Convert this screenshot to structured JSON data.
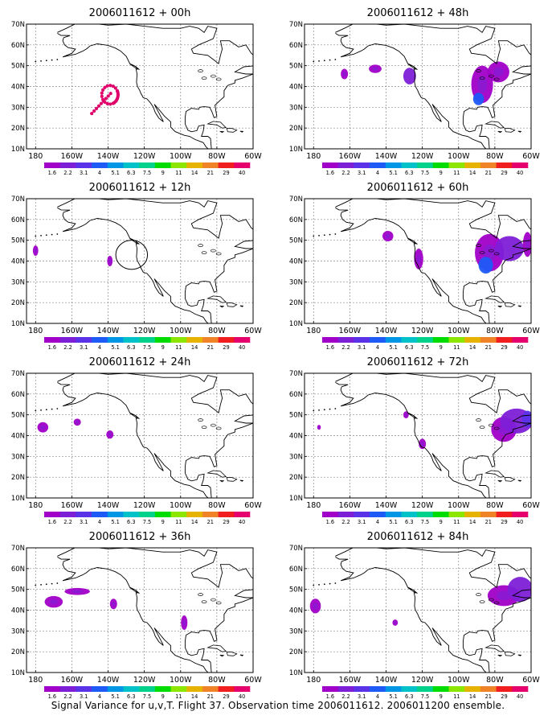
{
  "figure": {
    "caption": "Signal Variance for u,v,T. Flight 37. Observation time 2006011612. 2006011200 ensemble."
  },
  "axes": {
    "y_ticks": [
      "70N",
      "60N",
      "50N",
      "40N",
      "30N",
      "20N",
      "10N"
    ],
    "x_ticks": [
      "180",
      "160W",
      "140W",
      "120W",
      "100W",
      "80W",
      "60W"
    ],
    "lat_range": [
      10,
      70
    ],
    "lon_range": [
      -185,
      -60
    ]
  },
  "colorbar": {
    "labels": [
      "1.6",
      "2.2",
      "3.1",
      "4",
      "5.1",
      "6.3",
      "7.5",
      "9",
      "11",
      "14",
      "21",
      "29",
      "40"
    ],
    "colors": [
      "#a000c8",
      "#7d1fd6",
      "#5a32e8",
      "#1e5af5",
      "#0096e6",
      "#00c2c8",
      "#00d28c",
      "#00dc00",
      "#8ce600",
      "#e6b400",
      "#f08228",
      "#f01e1e",
      "#e6006e"
    ]
  },
  "panels": [
    {
      "title": "2006011612 + 00h",
      "blobs": [],
      "track": true
    },
    {
      "title": "2006011612 + 48h",
      "blobs": [
        {
          "lon": -163,
          "lat": 46,
          "rx": 2,
          "ry": 2.5,
          "c": 0
        },
        {
          "lon": -146,
          "lat": 48.5,
          "rx": 3.5,
          "ry": 2,
          "c": 0
        },
        {
          "lon": -127,
          "lat": 45,
          "rx": 3.5,
          "ry": 4,
          "c": 1
        },
        {
          "lon": -87,
          "lat": 41,
          "rx": 6,
          "ry": 9,
          "c": 0
        },
        {
          "lon": -89,
          "lat": 34,
          "rx": 3,
          "ry": 3,
          "c": 3
        },
        {
          "lon": -78,
          "lat": 47,
          "rx": 6,
          "ry": 5,
          "c": 0
        }
      ]
    },
    {
      "title": "2006011612 + 12h",
      "blobs": [
        {
          "lon": -180,
          "lat": 45,
          "rx": 1.5,
          "ry": 2.5,
          "c": 0
        },
        {
          "lon": -139,
          "lat": 40,
          "rx": 1.5,
          "ry": 2.5,
          "c": 0
        }
      ],
      "circle": {
        "lon": -127,
        "lat": 43,
        "r": 7
      }
    },
    {
      "title": "2006011612 + 60h",
      "blobs": [
        {
          "lon": -139,
          "lat": 52,
          "rx": 3,
          "ry": 2.5,
          "c": 0
        },
        {
          "lon": -122,
          "lat": 41,
          "rx": 2.5,
          "ry": 5,
          "c": 0
        },
        {
          "lon": -83,
          "lat": 44,
          "rx": 8,
          "ry": 9,
          "c": 0
        },
        {
          "lon": -85,
          "lat": 38,
          "rx": 4,
          "ry": 4,
          "c": 3
        },
        {
          "lon": -72,
          "lat": 46,
          "rx": 8,
          "ry": 6,
          "c": 1
        },
        {
          "lon": -62,
          "lat": 48,
          "rx": 2.5,
          "ry": 6,
          "c": 0
        }
      ]
    },
    {
      "title": "2006011612 + 24h",
      "blobs": [
        {
          "lon": -176,
          "lat": 44,
          "rx": 3,
          "ry": 2.5,
          "c": 0
        },
        {
          "lon": -157,
          "lat": 46.5,
          "rx": 2,
          "ry": 1.7,
          "c": 0
        },
        {
          "lon": -139,
          "lat": 40.5,
          "rx": 2,
          "ry": 2,
          "c": 0
        }
      ]
    },
    {
      "title": "2006011612 + 72h",
      "blobs": [
        {
          "lon": -177,
          "lat": 44,
          "rx": 1,
          "ry": 1.2,
          "c": 0
        },
        {
          "lon": -129,
          "lat": 50,
          "rx": 1.5,
          "ry": 1.7,
          "c": 0
        },
        {
          "lon": -120,
          "lat": 36,
          "rx": 2,
          "ry": 2.5,
          "c": 0
        },
        {
          "lon": -75,
          "lat": 43,
          "rx": 7,
          "ry": 6,
          "c": 0
        },
        {
          "lon": -68,
          "lat": 47,
          "rx": 9,
          "ry": 6,
          "c": 1
        },
        {
          "lon": -62,
          "lat": 48,
          "rx": 3,
          "ry": 4,
          "c": 2
        }
      ]
    },
    {
      "title": "2006011612 + 36h",
      "blobs": [
        {
          "lon": -170,
          "lat": 44,
          "rx": 5,
          "ry": 2.8,
          "c": 0
        },
        {
          "lon": -157,
          "lat": 49,
          "rx": 7,
          "ry": 1.7,
          "c": 0
        },
        {
          "lon": -137,
          "lat": 43,
          "rx": 2,
          "ry": 2.5,
          "c": 0
        },
        {
          "lon": -98,
          "lat": 34,
          "rx": 1.8,
          "ry": 3.5,
          "c": 0
        }
      ]
    },
    {
      "title": "2006011612 + 84h",
      "blobs": [
        {
          "lon": -179,
          "lat": 42,
          "rx": 3,
          "ry": 3.5,
          "c": 0
        },
        {
          "lon": -135,
          "lat": 34,
          "rx": 1.5,
          "ry": 1.5,
          "c": 0
        },
        {
          "lon": -75,
          "lat": 47,
          "rx": 9,
          "ry": 5,
          "c": 0
        },
        {
          "lon": -66,
          "lat": 50,
          "rx": 7,
          "ry": 6,
          "c": 1
        }
      ]
    }
  ]
}
